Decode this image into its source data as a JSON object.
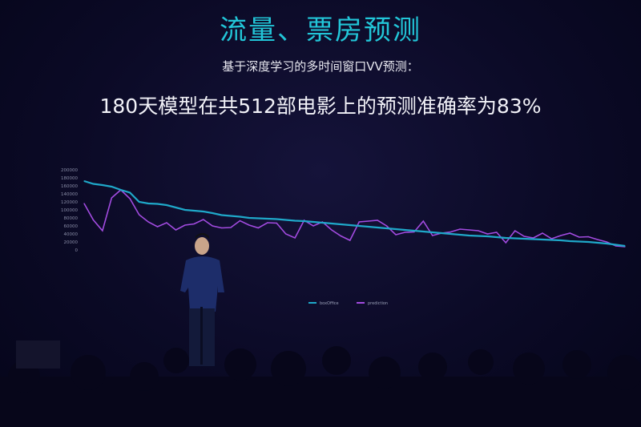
{
  "slide": {
    "title": "流量、票房预测",
    "subtitle": "基于深度学习的多时间窗口VV预测：",
    "headline": "180天模型在共512部电影上的预测准确率为83%"
  },
  "colors": {
    "title": "#22c6d8",
    "boxOffice": "#1fa8c9",
    "prediction": "#a24be0"
  },
  "chart_data": {
    "type": "line",
    "title": "",
    "xlabel": "",
    "ylabel": "",
    "ylim": [
      0,
      200000
    ],
    "yticks": [
      "0",
      "20000",
      "40000",
      "60000",
      "80000",
      "100000",
      "120000",
      "140000",
      "160000",
      "180000",
      "200000"
    ],
    "grid": false,
    "legend": "bottom",
    "series": [
      {
        "name": "boxOffice",
        "values": [
          172000,
          165000,
          162000,
          158000,
          150000,
          143000,
          120000,
          116000,
          115000,
          112000,
          106000,
          100000,
          98000,
          96000,
          92000,
          87000,
          85000,
          83000,
          80000,
          79000,
          78000,
          77000,
          75000,
          73000,
          72000,
          70000,
          68000,
          66000,
          64000,
          62000,
          60000,
          58000,
          56000,
          54000,
          52000,
          50000,
          48000,
          46000,
          44000,
          42000,
          40000,
          38000,
          36000,
          35000,
          34000,
          32000,
          30000,
          29000,
          28000,
          27000,
          26000,
          25000,
          24000,
          22000,
          21000,
          20000,
          18000,
          16000,
          13000,
          10000
        ]
      },
      {
        "name": "prediction",
        "values": [
          116000,
          75000,
          48000,
          130000,
          150000,
          128000,
          88000,
          70000,
          58000,
          68000,
          50000,
          62000,
          65000,
          76000,
          60000,
          55000,
          56000,
          73000,
          62000,
          55000,
          68000,
          67000,
          40000,
          30000,
          74000,
          60000,
          70000,
          50000,
          35000,
          24000,
          70000,
          72000,
          74000,
          60000,
          38000,
          44000,
          45000,
          72000,
          36000,
          42000,
          45000,
          52000,
          50000,
          48000,
          40000,
          44000,
          18000,
          48000,
          34000,
          30000,
          42000,
          28000,
          36000,
          42000,
          32000,
          33000,
          26000,
          20000,
          10000,
          8000
        ]
      }
    ]
  }
}
